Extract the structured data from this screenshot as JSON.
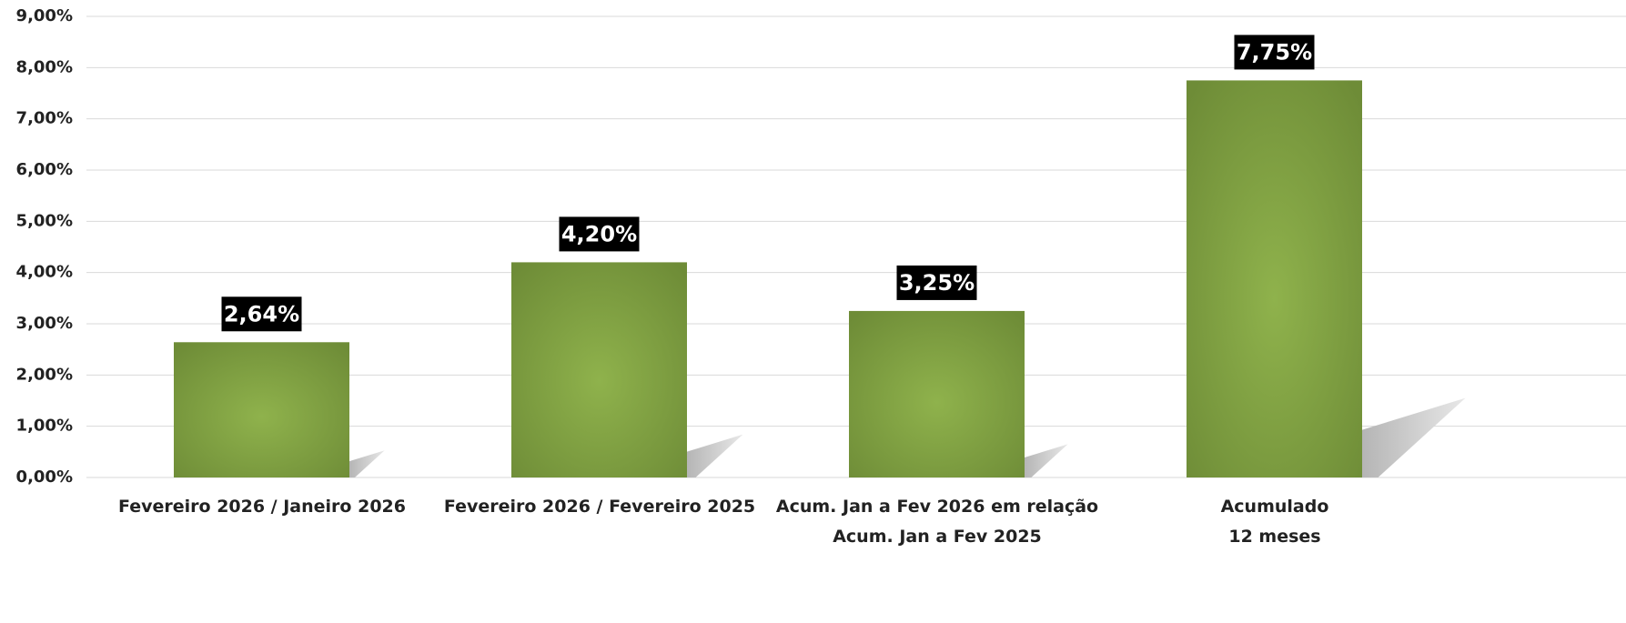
{
  "chart_data": {
    "type": "bar",
    "categories": [
      "Fevereiro 2026 / Janeiro 2026",
      "Fevereiro 2026 / Fevereiro 2025",
      "Acum. Jan a Fev 2026 em relação\nAcum. Jan a Fev 2025",
      "Acumulado\n12 meses"
    ],
    "values": [
      2.64,
      4.2,
      3.25,
      7.75
    ],
    "value_labels": [
      "2,64%",
      "4,20%",
      "3,25%",
      "7,75%"
    ],
    "color": "#6e8c37",
    "ylim": [
      0,
      9
    ],
    "yticks": [
      {
        "value": 0,
        "label": "0,00%"
      },
      {
        "value": 1,
        "label": "1,00%"
      },
      {
        "value": 2,
        "label": "2,00%"
      },
      {
        "value": 3,
        "label": "3,00%"
      },
      {
        "value": 4,
        "label": "4,00%"
      },
      {
        "value": 5,
        "label": "5,00%"
      },
      {
        "value": 6,
        "label": "6,00%"
      },
      {
        "value": 7,
        "label": "7,00%"
      },
      {
        "value": 8,
        "label": "8,00%"
      },
      {
        "value": 9,
        "label": "9,00%"
      }
    ],
    "grid": true
  }
}
